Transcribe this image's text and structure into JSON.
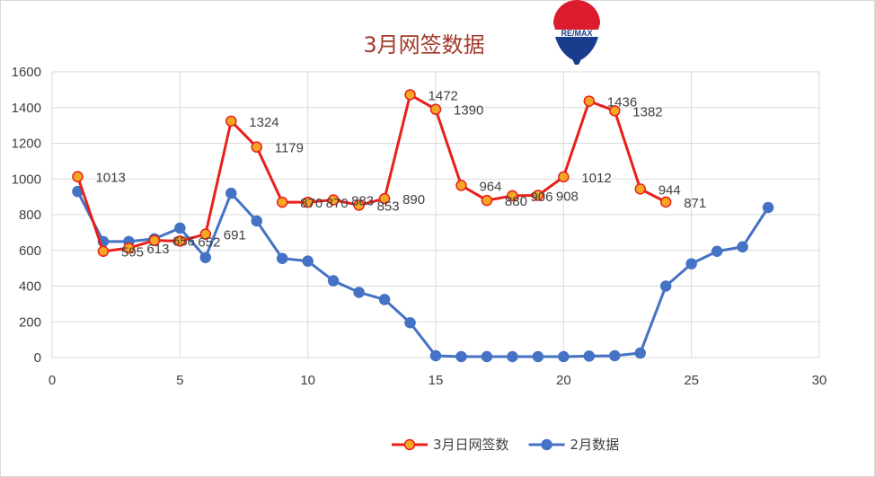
{
  "chart_data": {
    "type": "line",
    "title": "3月网签数据",
    "xlim": [
      0,
      30
    ],
    "ylim": [
      0,
      1600
    ],
    "x_ticks": [
      0,
      5,
      10,
      15,
      20,
      25,
      30
    ],
    "y_ticks": [
      0,
      200,
      400,
      600,
      800,
      1000,
      1200,
      1400,
      1600
    ],
    "grid": true,
    "legend_position": "bottom",
    "series": [
      {
        "name": "3月日网签数",
        "color": "#e8201a",
        "marker_fill": "#f5a623",
        "x": [
          1,
          2,
          3,
          4,
          5,
          6,
          7,
          8,
          9,
          10,
          11,
          12,
          13,
          14,
          15,
          16,
          17,
          18,
          19,
          20,
          21,
          22,
          23,
          24
        ],
        "values": [
          1013,
          595,
          613,
          656,
          652,
          691,
          1324,
          1179,
          870,
          870,
          883,
          853,
          890,
          1472,
          1390,
          964,
          880,
          906,
          908,
          1012,
          1436,
          1382,
          944,
          871
        ],
        "labels": [
          "1013",
          "595",
          "613",
          "656",
          "652",
          "691",
          "1324",
          "1179",
          "870",
          "870",
          "883",
          "853",
          "890",
          "1472",
          "1390",
          "964",
          "880",
          "906",
          "908",
          "1012",
          "1436",
          "1382",
          "944",
          "871"
        ]
      },
      {
        "name": "2月数据",
        "color": "#4472c4",
        "marker_fill": "#4472c4",
        "x": [
          1,
          2,
          3,
          4,
          5,
          6,
          7,
          8,
          9,
          10,
          11,
          12,
          13,
          14,
          15,
          16,
          17,
          18,
          19,
          20,
          21,
          22,
          23,
          24,
          25,
          26,
          27,
          28
        ],
        "values": [
          930,
          650,
          650,
          665,
          725,
          560,
          920,
          765,
          555,
          540,
          430,
          365,
          325,
          195,
          10,
          5,
          5,
          5,
          5,
          5,
          8,
          10,
          25,
          400,
          525,
          595,
          620,
          840
        ]
      }
    ]
  },
  "logo": {
    "text": "RE/MAX"
  }
}
